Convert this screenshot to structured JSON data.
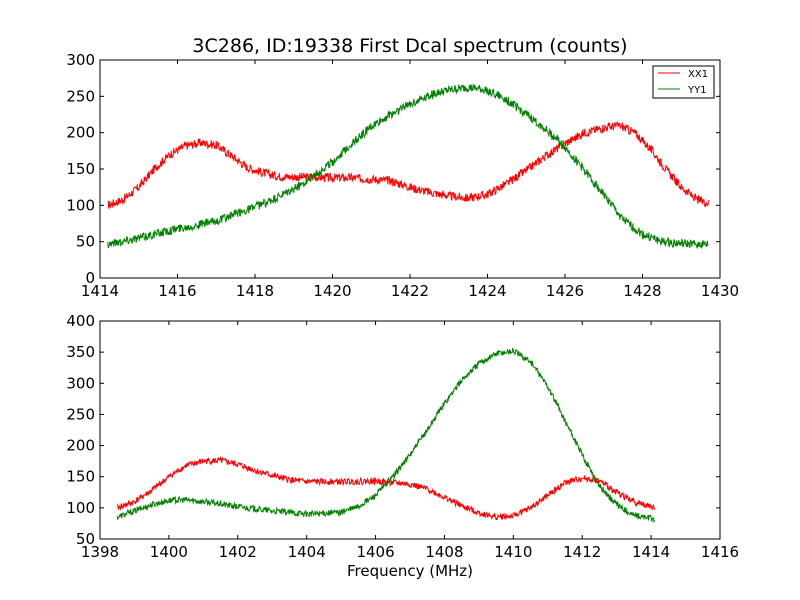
{
  "figure": {
    "title": "3C286, ID:19338 First Dcal spectrum (counts)",
    "background": "#ffffff"
  },
  "chart_data": [
    {
      "type": "line",
      "title": "3C286, ID:19338 First Dcal spectrum (counts)",
      "xlabel": "",
      "ylabel": "",
      "xlim": [
        1414,
        1430
      ],
      "ylim": [
        0,
        300
      ],
      "xticks": [
        1414,
        1416,
        1418,
        1420,
        1422,
        1424,
        1426,
        1428,
        1430
      ],
      "yticks": [
        0,
        50,
        100,
        150,
        200,
        250,
        300
      ],
      "grid": false,
      "legend": {
        "position": "top-right",
        "entries": [
          "XX1",
          "YY1"
        ]
      },
      "noise_amplitude": 6,
      "series": [
        {
          "name": "XX1",
          "color": "#ff0000",
          "x": [
            1414.2,
            1414.6,
            1415.0,
            1415.4,
            1415.8,
            1416.2,
            1416.6,
            1417.0,
            1417.4,
            1417.8,
            1418.2,
            1418.6,
            1419.0,
            1419.5,
            1420.0,
            1420.5,
            1421.0,
            1421.5,
            1422.0,
            1422.5,
            1423.0,
            1423.5,
            1424.0,
            1424.5,
            1425.0,
            1425.5,
            1426.0,
            1426.5,
            1427.0,
            1427.4,
            1427.8,
            1428.2,
            1428.6,
            1429.0,
            1429.4,
            1429.7
          ],
          "y": [
            100,
            108,
            125,
            150,
            170,
            182,
            186,
            183,
            168,
            152,
            145,
            140,
            139,
            139,
            138,
            138,
            136,
            134,
            125,
            118,
            113,
            110,
            115,
            130,
            148,
            168,
            185,
            200,
            207,
            210,
            200,
            178,
            150,
            125,
            108,
            103
          ]
        },
        {
          "name": "YY1",
          "color": "#008000",
          "x": [
            1414.2,
            1415.0,
            1416.0,
            1417.0,
            1417.5,
            1418.0,
            1418.5,
            1419.0,
            1419.5,
            1420.0,
            1420.5,
            1421.0,
            1421.5,
            1422.0,
            1422.5,
            1423.0,
            1423.5,
            1424.0,
            1424.5,
            1425.0,
            1425.5,
            1426.0,
            1426.5,
            1427.0,
            1427.5,
            1428.0,
            1428.5,
            1429.0,
            1429.7
          ],
          "y": [
            47,
            55,
            68,
            78,
            88,
            98,
            108,
            122,
            140,
            160,
            185,
            208,
            225,
            240,
            252,
            258,
            262,
            258,
            245,
            225,
            205,
            180,
            148,
            115,
            80,
            60,
            50,
            47,
            46
          ]
        }
      ]
    },
    {
      "type": "line",
      "title": "",
      "xlabel": "Frequency (MHz)",
      "ylabel": "",
      "xlim": [
        1398,
        1416
      ],
      "ylim": [
        50,
        400
      ],
      "xticks": [
        1398,
        1400,
        1402,
        1404,
        1406,
        1408,
        1410,
        1412,
        1414,
        1416
      ],
      "yticks": [
        50,
        100,
        150,
        200,
        250,
        300,
        350,
        400
      ],
      "grid": false,
      "noise_amplitude": 5,
      "series": [
        {
          "name": "XX1",
          "color": "#ff0000",
          "x": [
            1398.5,
            1399.0,
            1399.5,
            1400.0,
            1400.5,
            1401.0,
            1401.5,
            1402.0,
            1402.5,
            1403.0,
            1403.5,
            1404.0,
            1405.0,
            1406.0,
            1407.0,
            1407.5,
            1408.0,
            1408.5,
            1409.0,
            1409.5,
            1410.0,
            1410.5,
            1411.0,
            1411.5,
            1412.0,
            1412.5,
            1413.0,
            1413.5,
            1414.1
          ],
          "y": [
            100,
            110,
            128,
            150,
            168,
            175,
            176,
            170,
            160,
            152,
            145,
            142,
            142,
            143,
            138,
            130,
            117,
            103,
            92,
            85,
            87,
            100,
            120,
            140,
            148,
            143,
            125,
            110,
            100
          ]
        },
        {
          "name": "YY1",
          "color": "#008000",
          "x": [
            1398.5,
            1399.0,
            1399.5,
            1400.0,
            1400.5,
            1401.0,
            1402.0,
            1403.0,
            1404.0,
            1405.0,
            1405.5,
            1406.0,
            1406.5,
            1407.0,
            1407.5,
            1408.0,
            1408.5,
            1409.0,
            1409.5,
            1410.0,
            1410.5,
            1411.0,
            1411.5,
            1412.0,
            1412.5,
            1413.0,
            1413.5,
            1414.1
          ],
          "y": [
            85,
            95,
            105,
            112,
            113,
            110,
            102,
            95,
            90,
            93,
            102,
            120,
            150,
            185,
            225,
            268,
            305,
            332,
            348,
            352,
            335,
            295,
            240,
            185,
            135,
            105,
            88,
            82
          ]
        }
      ]
    }
  ]
}
